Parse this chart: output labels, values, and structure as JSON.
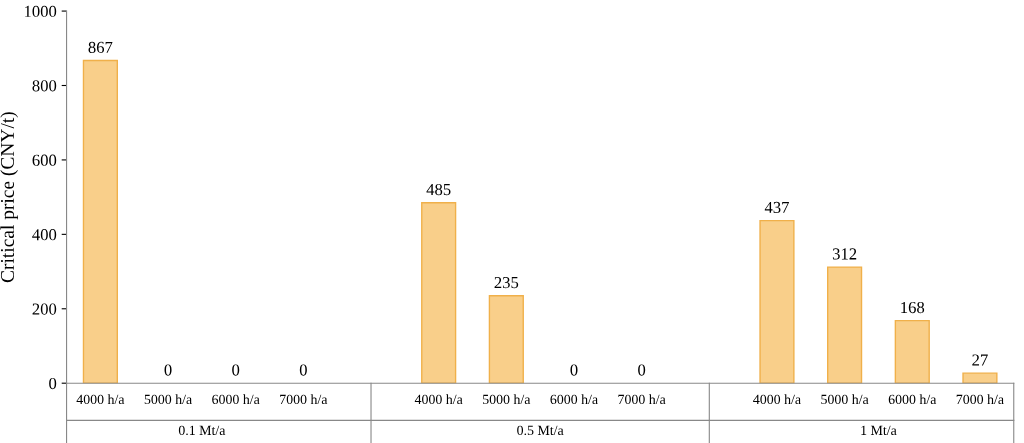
{
  "chart_data": {
    "type": "bar",
    "ylabel": "Critical price (CNY/t)",
    "categories": [
      "4000 h/a",
      "5000 h/a",
      "6000 h/a",
      "7000 h/a",
      null,
      "4000 h/a",
      "5000 h/a",
      "6000 h/a",
      "7000 h/a",
      null,
      "4000 h/a",
      "5000 h/a",
      "6000 h/a",
      "7000 h/a"
    ],
    "values": [
      867,
      0,
      0,
      0,
      null,
      485,
      235,
      0,
      0,
      null,
      437,
      312,
      168,
      27
    ],
    "color": "#f9cf8a",
    "annotations": [
      "0.1 Mt/a",
      "0.5 Mt/a",
      "1 Mt/a"
    ],
    "ylim": [
      0,
      1000
    ],
    "yticks": [
      0,
      200,
      400,
      600,
      800,
      1000
    ],
    "data_labels": true,
    "grid": false,
    "legend": false
  }
}
